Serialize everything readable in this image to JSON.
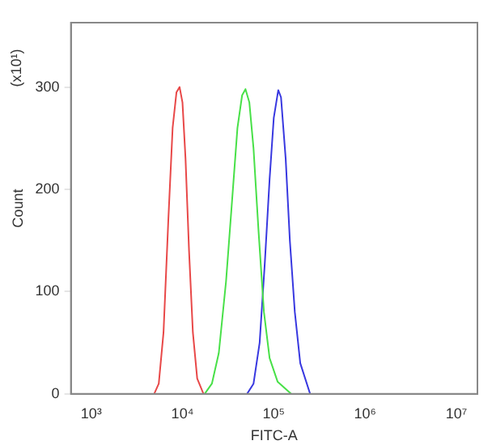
{
  "chart_data": {
    "type": "line",
    "xlabel": "FITC-A",
    "ylabel": "Count",
    "annotations": [
      "(x10¹)"
    ],
    "log": "x",
    "grid": false,
    "legend": false,
    "marker": "none",
    "line_style": "solid",
    "xlim": [
      600,
      17000000
    ],
    "xticks": [
      {
        "value": 1000,
        "label": "10³"
      },
      {
        "value": 10000,
        "label": "10⁴"
      },
      {
        "value": 100000,
        "label": "10⁵"
      },
      {
        "value": 1000000,
        "label": "10⁶"
      },
      {
        "value": 10000000,
        "label": "10⁷"
      }
    ],
    "ylim": [
      0,
      363
    ],
    "yticks": [
      0,
      100,
      200,
      300
    ],
    "series": [
      {
        "color": "#e84848",
        "x": [
          4900,
          5500,
          6200,
          7000,
          7800,
          8600,
          9300,
          10000,
          10800,
          11800,
          13000,
          14500,
          17000
        ],
        "values": [
          0,
          10,
          60,
          170,
          260,
          295,
          300,
          285,
          230,
          140,
          60,
          15,
          0
        ]
      },
      {
        "color": "#48e048",
        "x": [
          17500,
          21000,
          25000,
          30000,
          35000,
          40000,
          45000,
          49000,
          54000,
          60000,
          68000,
          78000,
          90000,
          110000,
          155000
        ],
        "values": [
          0,
          10,
          40,
          110,
          190,
          260,
          292,
          298,
          285,
          240,
          160,
          80,
          35,
          12,
          0
        ]
      },
      {
        "color": "#3838e0",
        "x": [
          51000,
          60000,
          70000,
          80000,
          90000,
          100000,
          112000,
          120000,
          135000,
          150000,
          170000,
          195000,
          250000
        ],
        "values": [
          0,
          10,
          50,
          130,
          210,
          270,
          297,
          290,
          230,
          150,
          80,
          30,
          0
        ]
      }
    ]
  }
}
